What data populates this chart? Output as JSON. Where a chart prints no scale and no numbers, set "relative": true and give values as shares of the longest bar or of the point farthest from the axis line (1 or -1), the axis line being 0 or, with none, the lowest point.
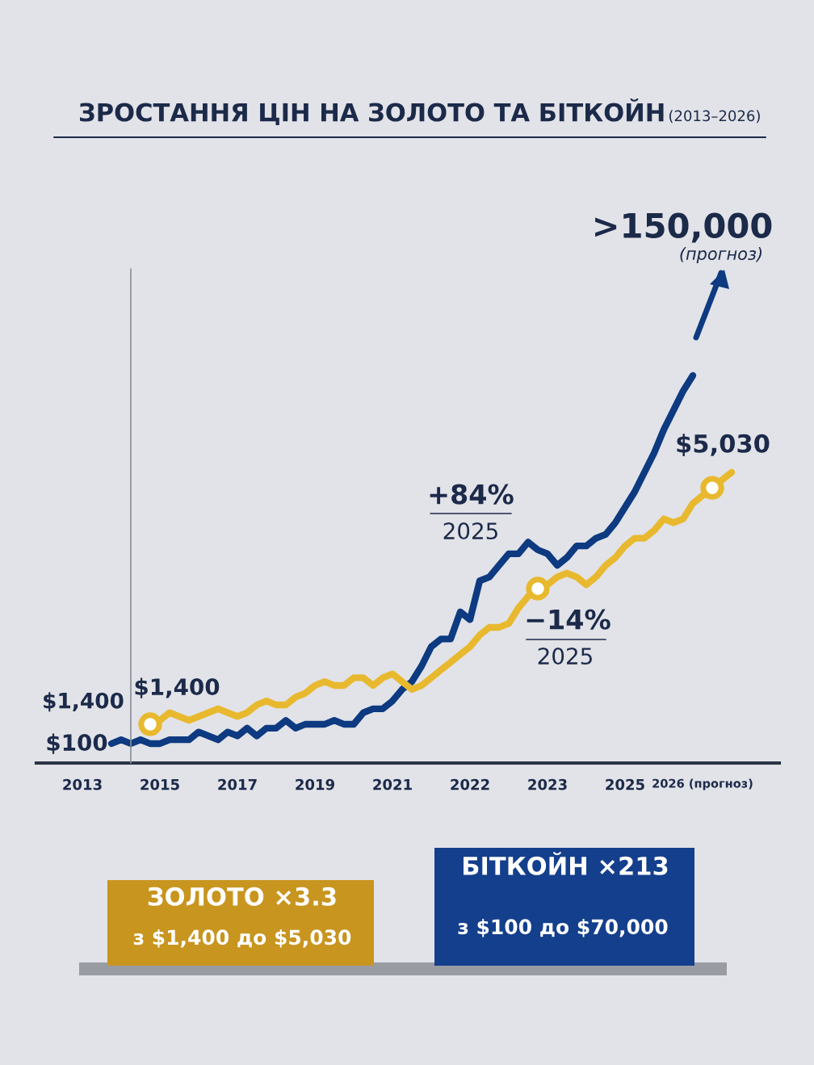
{
  "chart_data": {
    "type": "line",
    "title": "ЗРОСТАННЯ ЦІН НА ЗОЛОТО ТА БІТКОЙН",
    "subtitle": "(2013–2026)",
    "relative": true,
    "categories": [
      "2013",
      null,
      null,
      null,
      null,
      null,
      null,
      null,
      "2015",
      null,
      null,
      null,
      null,
      null,
      null,
      null,
      "2017",
      null,
      null,
      null,
      null,
      null,
      null,
      null,
      "2019",
      null,
      null,
      null,
      null,
      null,
      null,
      null,
      "2021",
      null,
      null,
      null,
      null,
      null,
      null,
      null,
      "2022",
      null,
      null,
      null,
      null,
      null,
      null,
      null,
      "2023",
      null,
      null,
      null,
      null,
      null,
      null,
      null,
      "2025",
      null,
      null,
      null,
      null,
      null,
      null,
      null,
      "2026 (прогноз)",
      null,
      null,
      null
    ],
    "series": [
      {
        "color": "#0d3a80",
        "values": [
          null,
          null,
          null,
          0.05,
          0.06,
          0.05,
          0.06,
          0.05,
          0.05,
          0.06,
          0.06,
          0.06,
          0.08,
          0.07,
          0.06,
          0.08,
          0.07,
          0.09,
          0.07,
          0.09,
          0.09,
          0.11,
          0.09,
          0.1,
          0.1,
          0.1,
          0.11,
          0.1,
          0.1,
          0.13,
          0.14,
          0.14,
          0.16,
          0.19,
          0.21,
          0.25,
          0.3,
          0.32,
          0.32,
          0.39,
          0.37,
          0.47,
          0.48,
          0.51,
          0.54,
          0.54,
          0.57,
          0.55,
          0.54,
          0.51,
          0.53,
          0.56,
          0.56,
          0.58,
          0.59,
          0.62,
          0.66,
          0.7,
          0.75,
          0.8,
          0.86,
          0.91,
          0.96,
          1.0,
          null,
          null,
          null,
          null
        ]
      },
      {
        "color": "#e8b92e",
        "values": [
          null,
          null,
          null,
          null,
          null,
          null,
          null,
          0.1,
          0.11,
          0.13,
          0.12,
          0.11,
          0.12,
          0.13,
          0.14,
          0.13,
          0.12,
          0.13,
          0.15,
          0.16,
          0.15,
          0.15,
          0.17,
          0.18,
          0.2,
          0.21,
          0.2,
          0.2,
          0.22,
          0.22,
          0.2,
          0.22,
          0.23,
          0.21,
          0.19,
          0.2,
          0.22,
          0.24,
          0.26,
          0.28,
          0.3,
          0.33,
          0.35,
          0.35,
          0.36,
          0.4,
          0.43,
          0.45,
          0.46,
          0.48,
          0.49,
          0.48,
          0.46,
          0.48,
          0.51,
          0.53,
          0.56,
          0.58,
          0.58,
          0.6,
          0.63,
          0.62,
          0.63,
          0.67,
          0.69,
          0.71,
          0.73,
          0.75
        ]
      },
      {
        "type": "scatter",
        "color": "#e8b92e",
        "marker": "circle",
        "values": [
          null,
          null,
          null,
          null,
          null,
          null,
          null,
          0.1,
          null,
          null,
          null,
          null,
          null,
          null,
          null,
          null,
          null,
          null,
          null,
          null,
          null,
          null,
          null,
          null,
          null,
          null,
          null,
          null,
          null,
          null,
          null,
          null,
          null,
          null,
          null,
          null,
          null,
          null,
          null,
          null,
          null,
          null,
          null,
          null,
          null,
          null,
          null,
          0.45,
          null,
          null,
          null,
          null,
          null,
          null,
          null,
          null,
          null,
          null,
          null,
          null,
          null,
          null,
          null,
          null,
          null,
          0.71,
          null,
          null
        ]
      }
    ],
    "annotations": [
      "$1,400",
      "$100",
      "$1,400",
      "$5,030",
      "+84%",
      "2025",
      "−14%",
      "2025",
      ">150,000",
      "(прогноз)",
      "ЗОЛОТО ×3.3",
      "з $1,400 до $5,030",
      "БІТКОЙН ×213",
      "з $100 до $70,000"
    ]
  }
}
